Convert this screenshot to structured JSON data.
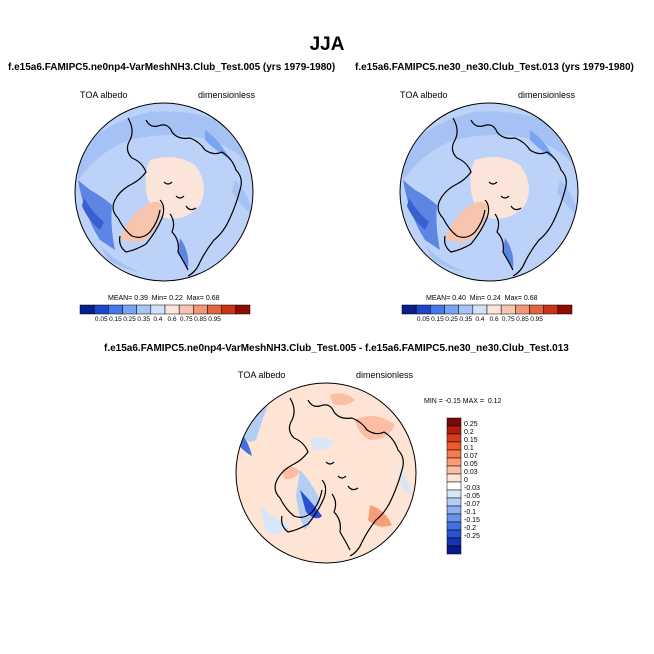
{
  "figure": {
    "season": "JJA",
    "colors": {
      "coast": "#000000",
      "panel_bg": "#ffffff"
    }
  },
  "chart_data": [
    {
      "type": "polar-stereographic-contour-map",
      "title": "f.e15a6.FAMIPC5.ne0np4-VarMeshNH3.Club_Test.005 (yrs 1979-1980)",
      "left_label": "TOA albedo",
      "right_label": "dimensionless",
      "stats": {
        "mean_label": "MEAN=",
        "mean": "0.39",
        "min_label": "Min=",
        "min": "0.22",
        "max_label": "Max=",
        "max": "0.68"
      },
      "colorbar": {
        "orientation": "horizontal",
        "levels": [
          "0.05",
          "0.15",
          "0.25",
          "0.35",
          "0.4",
          "0.6",
          "0.75",
          "0.85",
          "0.95"
        ],
        "colors": [
          "#0a1e8c",
          "#1e46c8",
          "#4678e6",
          "#7aa3f0",
          "#a8c4f6",
          "#d2e2fa",
          "#fbe5da",
          "#f7c4ae",
          "#f0967a",
          "#e4643f",
          "#c83418",
          "#8c0c06"
        ]
      }
    },
    {
      "type": "polar-stereographic-contour-map",
      "title": "f.e15a6.FAMIPC5.ne30_ne30.Club_Test.013 (yrs 1979-1980)",
      "left_label": "TOA albedo",
      "right_label": "dimensionless",
      "stats": {
        "mean_label": "MEAN=",
        "mean": "0.40",
        "min_label": "Min=",
        "min": "0.24",
        "max_label": "Max=",
        "max": "0.68"
      },
      "colorbar": {
        "orientation": "horizontal",
        "levels": [
          "0.05",
          "0.15",
          "0.25",
          "0.35",
          "0.4",
          "0.6",
          "0.75",
          "0.85",
          "0.95"
        ],
        "colors": [
          "#0a1e8c",
          "#1e46c8",
          "#4678e6",
          "#7aa3f0",
          "#a8c4f6",
          "#d2e2fa",
          "#fbe5da",
          "#f7c4ae",
          "#f0967a",
          "#e4643f",
          "#c83418",
          "#8c0c06"
        ]
      }
    },
    {
      "type": "polar-stereographic-contour-map",
      "title": "f.e15a6.FAMIPC5.ne0np4-VarMeshNH3.Club_Test.005 - f.e15a6.FAMIPC5.ne30_ne30.Club_Test.013",
      "left_label": "TOA albedo",
      "right_label": "dimensionless",
      "stats": {
        "min_label": "MIN =",
        "min": "-0.15",
        "max_label": "MAX =",
        "max": "0.12"
      },
      "colorbar": {
        "orientation": "vertical",
        "levels": [
          "0.25",
          "0.2",
          "0.15",
          "0.1",
          "0.07",
          "0.05",
          "0.03",
          "0",
          "-0.03",
          "-0.05",
          "-0.07",
          "-0.1",
          "-0.15",
          "-0.2",
          "-0.25"
        ],
        "colors": [
          "#7a0a06",
          "#b01c10",
          "#d83a1e",
          "#ee5a30",
          "#f67a4e",
          "#f99c78",
          "#fcbea2",
          "#fde4d4",
          "#ffffff",
          "#d8e6fa",
          "#b4cdf4",
          "#8eb0ee",
          "#6a92e8",
          "#4470e0",
          "#2a50d4",
          "#1832b8",
          "#0a1a8c"
        ]
      }
    }
  ]
}
